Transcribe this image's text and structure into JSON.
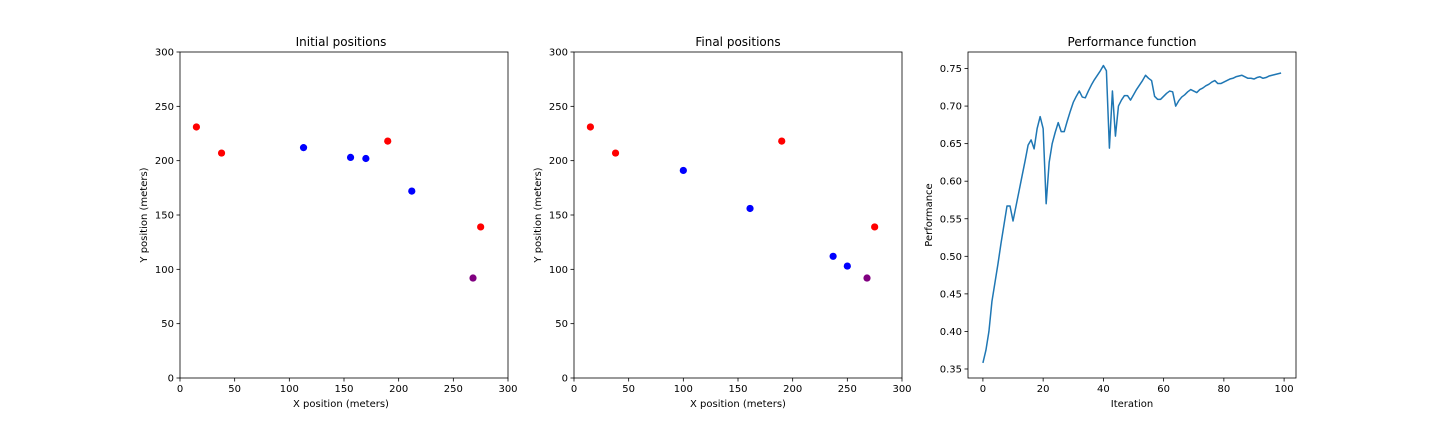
{
  "chart_data": [
    {
      "type": "scatter",
      "title": "Initial positions",
      "xlabel": "X position (meters)",
      "ylabel": "Y position (meters)",
      "xlim": [
        0,
        300
      ],
      "ylim": [
        0,
        300
      ],
      "xticks": [
        0,
        50,
        100,
        150,
        200,
        250,
        300
      ],
      "yticks": [
        0,
        50,
        100,
        150,
        200,
        250,
        300
      ],
      "grid": false,
      "points": [
        {
          "x": 15,
          "y": 231,
          "color": "#ff0000"
        },
        {
          "x": 38,
          "y": 207,
          "color": "#ff0000"
        },
        {
          "x": 113,
          "y": 212,
          "color": "#0000ff"
        },
        {
          "x": 156,
          "y": 203,
          "color": "#0000ff"
        },
        {
          "x": 170,
          "y": 202,
          "color": "#0000ff"
        },
        {
          "x": 190,
          "y": 218,
          "color": "#ff0000"
        },
        {
          "x": 212,
          "y": 172,
          "color": "#0000ff"
        },
        {
          "x": 275,
          "y": 139,
          "color": "#ff0000"
        },
        {
          "x": 268,
          "y": 92,
          "color": "#800080"
        }
      ]
    },
    {
      "type": "scatter",
      "title": "Final positions",
      "xlabel": "X position (meters)",
      "ylabel": "Y position (meters)",
      "xlim": [
        0,
        300
      ],
      "ylim": [
        0,
        300
      ],
      "xticks": [
        0,
        50,
        100,
        150,
        200,
        250,
        300
      ],
      "yticks": [
        0,
        50,
        100,
        150,
        200,
        250,
        300
      ],
      "grid": false,
      "points": [
        {
          "x": 15,
          "y": 231,
          "color": "#ff0000"
        },
        {
          "x": 38,
          "y": 207,
          "color": "#ff0000"
        },
        {
          "x": 100,
          "y": 191,
          "color": "#0000ff"
        },
        {
          "x": 161,
          "y": 156,
          "color": "#0000ff"
        },
        {
          "x": 190,
          "y": 218,
          "color": "#ff0000"
        },
        {
          "x": 237,
          "y": 112,
          "color": "#0000ff"
        },
        {
          "x": 250,
          "y": 103,
          "color": "#0000ff"
        },
        {
          "x": 275,
          "y": 139,
          "color": "#ff0000"
        },
        {
          "x": 268,
          "y": 92,
          "color": "#800080"
        }
      ]
    },
    {
      "type": "line",
      "title": "Performance function",
      "xlabel": "Iteration",
      "ylabel": "Performance",
      "xlim": [
        -4.95,
        103.95
      ],
      "ylim": [
        0.338,
        0.772
      ],
      "xticks": [
        0,
        20,
        40,
        60,
        80,
        100
      ],
      "yticks": [
        0.35,
        0.4,
        0.45,
        0.5,
        0.55,
        0.6,
        0.65,
        0.7,
        0.75
      ],
      "grid": false,
      "series": [
        {
          "color": "#1f77b4",
          "x": [
            0,
            1,
            2,
            3,
            4,
            5,
            6,
            7,
            8,
            9,
            10,
            11,
            12,
            13,
            14,
            15,
            16,
            17,
            18,
            19,
            20,
            21,
            22,
            23,
            24,
            25,
            26,
            27,
            28,
            29,
            30,
            31,
            32,
            33,
            34,
            35,
            36,
            37,
            38,
            39,
            40,
            41,
            42,
            43,
            44,
            45,
            46,
            47,
            48,
            49,
            50,
            51,
            52,
            53,
            54,
            55,
            56,
            57,
            58,
            59,
            60,
            61,
            62,
            63,
            64,
            65,
            66,
            67,
            68,
            69,
            70,
            71,
            72,
            73,
            74,
            75,
            76,
            77,
            78,
            79,
            80,
            81,
            82,
            83,
            84,
            85,
            86,
            87,
            88,
            89,
            90,
            91,
            92,
            93,
            94,
            95,
            96,
            97,
            98,
            99
          ],
          "values": [
            0.358,
            0.375,
            0.4,
            0.44,
            0.465,
            0.49,
            0.517,
            0.542,
            0.567,
            0.567,
            0.547,
            0.567,
            0.587,
            0.607,
            0.627,
            0.648,
            0.655,
            0.643,
            0.67,
            0.686,
            0.67,
            0.57,
            0.625,
            0.65,
            0.665,
            0.678,
            0.666,
            0.666,
            0.68,
            0.693,
            0.705,
            0.713,
            0.72,
            0.712,
            0.711,
            0.72,
            0.728,
            0.735,
            0.741,
            0.747,
            0.754,
            0.747,
            0.644,
            0.72,
            0.66,
            0.7,
            0.708,
            0.714,
            0.714,
            0.708,
            0.715,
            0.722,
            0.728,
            0.734,
            0.741,
            0.737,
            0.734,
            0.713,
            0.709,
            0.709,
            0.713,
            0.717,
            0.72,
            0.719,
            0.7,
            0.707,
            0.712,
            0.715,
            0.719,
            0.722,
            0.72,
            0.718,
            0.722,
            0.724,
            0.727,
            0.729,
            0.732,
            0.734,
            0.73,
            0.73,
            0.732,
            0.734,
            0.736,
            0.737,
            0.739,
            0.74,
            0.741,
            0.739,
            0.737,
            0.737,
            0.736,
            0.738,
            0.739,
            0.737,
            0.738,
            0.74,
            0.741,
            0.742,
            0.743,
            0.744
          ]
        }
      ]
    }
  ]
}
